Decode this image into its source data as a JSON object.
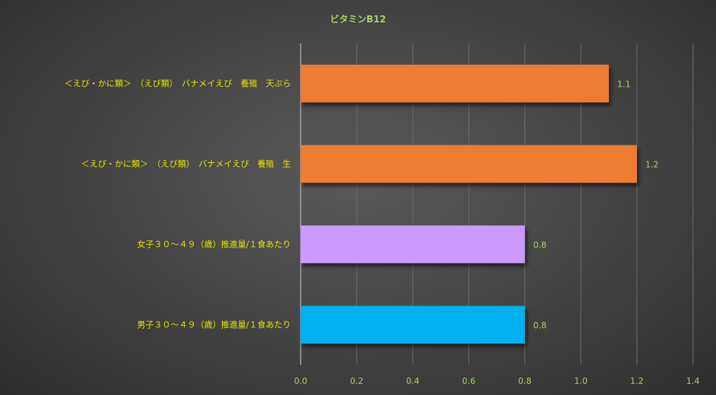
{
  "chart_data": {
    "type": "bar",
    "orientation": "horizontal",
    "title": "ビタミンB12",
    "categories": [
      "＜えび・かに類＞　（えび類）　バナメイえび　養殖　天ぷら",
      "＜えび・かに類＞　（えび類）　バナメイえび　養殖　生",
      "女子３０～４９（歳）推進量/１食あたり",
      "男子３０～４９（歳）推進量/１食あたり"
    ],
    "values": [
      1.1,
      1.2,
      0.8,
      0.8
    ],
    "value_labels": [
      "1.1",
      "1.2",
      "0.8",
      "0.8"
    ],
    "bar_colors": [
      "#ed7d31",
      "#ed7d31",
      "#cc99ff",
      "#00b0f0"
    ],
    "xlim": [
      0,
      1.4
    ],
    "xticks": [
      "0.0",
      "0.2",
      "0.4",
      "0.6",
      "0.8",
      "1.0",
      "1.2",
      "1.4"
    ],
    "xlabel": "",
    "ylabel": "",
    "grid": true,
    "legend": "none"
  }
}
